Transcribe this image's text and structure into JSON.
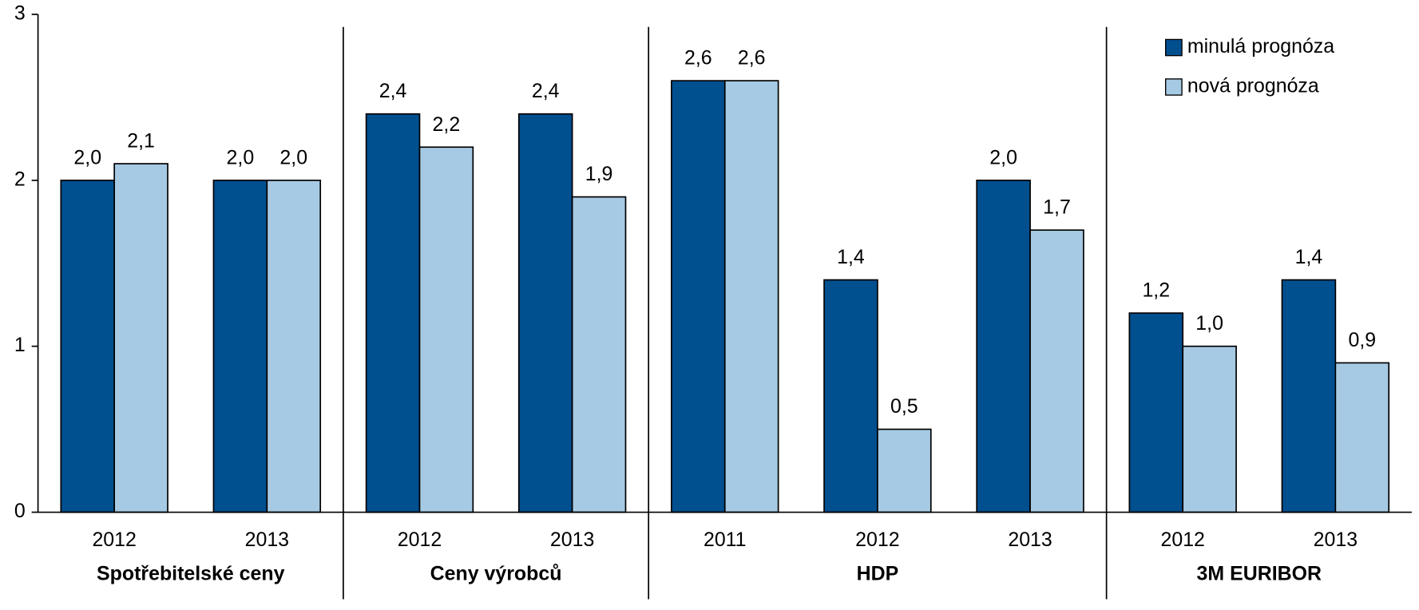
{
  "chart_data": {
    "type": "bar",
    "groups": [
      {
        "label": "Spotřebitelské ceny",
        "categories": [
          "2012",
          "2013"
        ]
      },
      {
        "label": "Ceny výrobců",
        "categories": [
          "2012",
          "2013"
        ]
      },
      {
        "label": "HDP",
        "categories": [
          "2011",
          "2012",
          "2013"
        ]
      },
      {
        "label": "3M EURIBOR",
        "categories": [
          "2012",
          "2013"
        ]
      }
    ],
    "series": [
      {
        "name": "minulá prognóza",
        "color": "#004f8f",
        "values": [
          2.0,
          2.0,
          2.4,
          2.4,
          2.6,
          1.4,
          2.0,
          1.2,
          1.4
        ],
        "value_labels": [
          "2,0",
          "2,0",
          "2,4",
          "2,4",
          "2,6",
          "1,4",
          "2,0",
          "1,2",
          "1,4"
        ]
      },
      {
        "name": "nová prognóza",
        "color": "#a6cae3",
        "values": [
          2.1,
          2.0,
          2.2,
          1.9,
          2.6,
          0.5,
          1.7,
          1.0,
          0.9
        ],
        "value_labels": [
          "2,1",
          "2,0",
          "2,2",
          "1,9",
          "2,6",
          "0,5",
          "1,7",
          "1,0",
          "0,9"
        ]
      }
    ],
    "ylim": [
      0,
      3
    ],
    "yticks": [
      0,
      1,
      2,
      3
    ],
    "legend": "upper right"
  }
}
